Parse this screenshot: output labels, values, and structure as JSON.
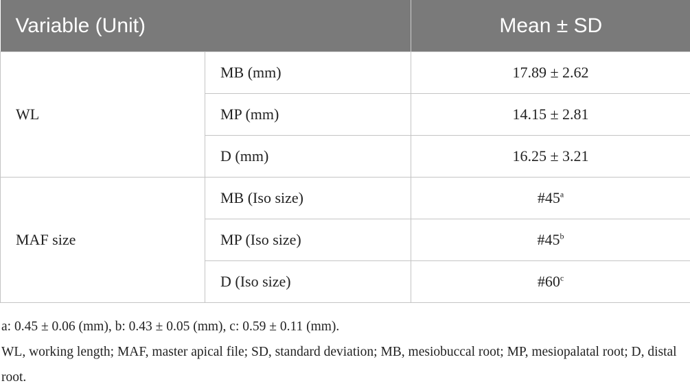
{
  "table": {
    "header": [
      "Variable (Unit)",
      "Mean ± SD"
    ],
    "groups": [
      {
        "label": "WL",
        "rows": [
          [
            "MB (mm)",
            "17.89 ± 2.62"
          ],
          [
            "MP (mm)",
            "14.15 ± 2.81"
          ],
          [
            "D (mm)",
            "16.25 ± 3.21"
          ]
        ]
      },
      {
        "label": "MAF size",
        "rows": [
          [
            "MB (Iso size)",
            "#45",
            "a"
          ],
          [
            "MP (Iso size)",
            "#45",
            "b"
          ],
          [
            "D (Iso size)",
            "#60",
            "c"
          ]
        ]
      }
    ]
  },
  "footnotes": [
    "a: 0.45 ± 0.06 (mm), b: 0.43 ± 0.05 (mm), c: 0.59 ± 0.11 (mm).",
    "WL, working length; MAF, master apical file; SD, standard deviation; MB, mesiobuccal root; MP, mesiopalatal root; D, distal root."
  ]
}
